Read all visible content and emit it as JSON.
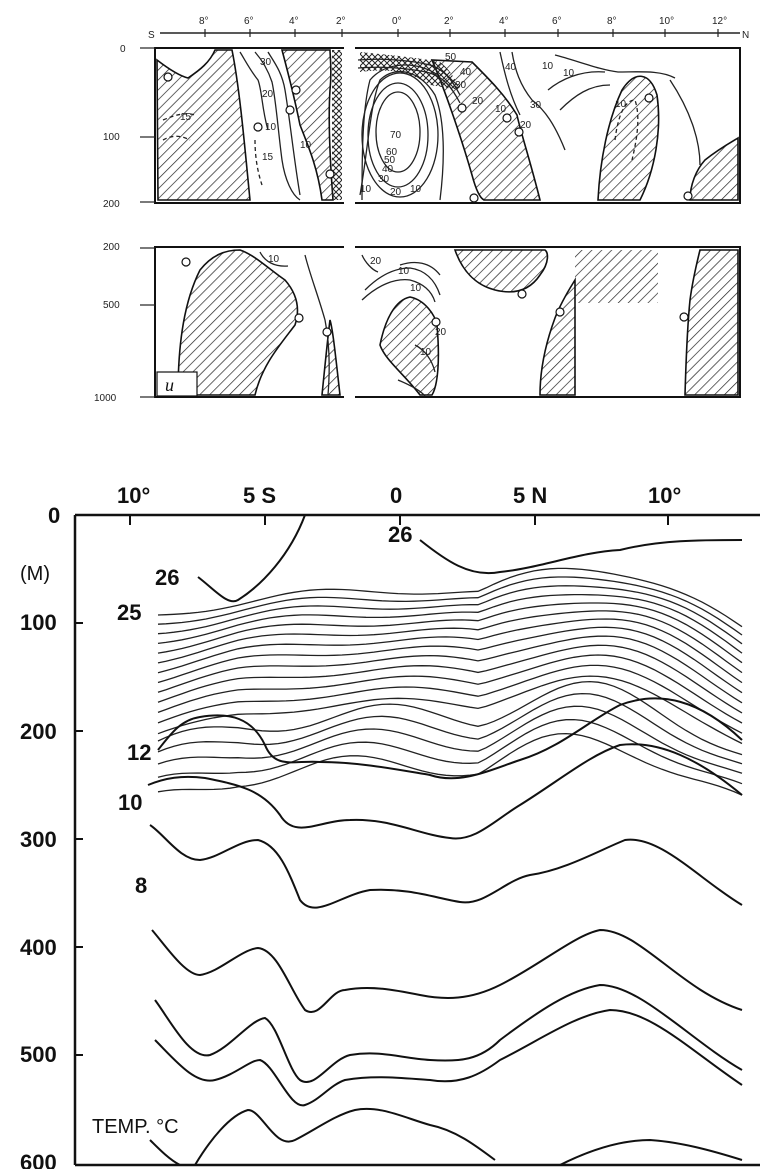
{
  "upper_panel": {
    "lat_ticks": [
      "8°",
      "6°",
      "4°",
      "2°",
      "0°",
      "2°",
      "4°",
      "6°",
      "8°",
      "10°",
      "12°"
    ],
    "hemisphere_labels": [
      "S",
      "N"
    ],
    "depth_ticks_top": [
      "0",
      "100",
      "200"
    ],
    "depth_ticks_bottom": [
      "200",
      "500",
      "1000"
    ],
    "panel_letter": "u",
    "contour_labels": [
      {
        "text": "30"
      },
      {
        "text": "20"
      },
      {
        "text": "15"
      },
      {
        "text": "10"
      },
      {
        "text": "15"
      },
      {
        "text": "10"
      },
      {
        "text": "70"
      },
      {
        "text": "60"
      },
      {
        "text": "50"
      },
      {
        "text": "40"
      },
      {
        "text": "30"
      },
      {
        "text": "20"
      },
      {
        "text": "10"
      },
      {
        "text": "10"
      },
      {
        "text": "50"
      },
      {
        "text": "40"
      },
      {
        "text": "30"
      },
      {
        "text": "20"
      },
      {
        "text": "10"
      },
      {
        "text": "20"
      },
      {
        "text": "30"
      },
      {
        "text": "40"
      },
      {
        "text": "10"
      },
      {
        "text": "10"
      },
      {
        "text": "10"
      },
      {
        "text": "10"
      },
      {
        "text": "20"
      },
      {
        "text": "10"
      },
      {
        "text": "10"
      },
      {
        "text": "20"
      },
      {
        "text": "10"
      }
    ]
  },
  "lower_panel": {
    "lat_ticks": [
      "10°",
      "5 S",
      "0",
      "5 N",
      "10°"
    ],
    "depth_unit": "(M)",
    "depth_ticks": [
      "0",
      "100",
      "200",
      "300",
      "400",
      "500",
      "600"
    ],
    "isotherm_labels": [
      "26",
      "26",
      "25",
      "12",
      "10",
      "8"
    ],
    "caption": "TEMP. °C"
  }
}
